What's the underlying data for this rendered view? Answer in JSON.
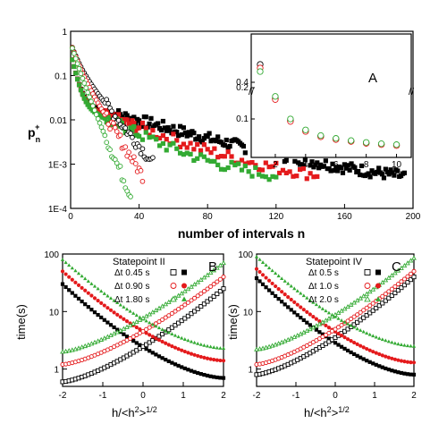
{
  "colors": {
    "black": "#000000",
    "red": "#e41a1c",
    "green": "#33aa33"
  },
  "chart_data": [
    {
      "id": "top",
      "type": "scatter",
      "xlabel": "number of intervals n",
      "ylabel_main": "p",
      "ylabel_sub": "n",
      "ylabel_sup": "+",
      "xlim": [
        0,
        200
      ],
      "ylim": [
        0.0001,
        1
      ],
      "yscale": "log",
      "xticks": [
        "0",
        "40",
        "80",
        "120",
        "160",
        "200"
      ],
      "yticks": [
        "1E-4",
        "1E-3",
        "0.01",
        "0.1",
        "1"
      ],
      "series": [
        {
          "color": "black",
          "marker": "square-filled",
          "decay_scale": 25,
          "tail_end": 195
        },
        {
          "color": "red",
          "marker": "square-filled",
          "decay_scale": 18,
          "tail_end": 145
        },
        {
          "color": "green",
          "marker": "square-filled",
          "decay_scale": 14,
          "tail_end": 120
        },
        {
          "color": "black",
          "marker": "circle-open",
          "decay_scale": 9,
          "tail_end": 48
        },
        {
          "color": "red",
          "marker": "circle-open",
          "decay_scale": 7,
          "tail_end": 42
        },
        {
          "color": "green",
          "marker": "circle-open",
          "decay_scale": 5,
          "tail_end": 35
        }
      ],
      "inset": {
        "label": "A",
        "xlim": [
          1,
          10.5
        ],
        "xticks": [
          "2",
          "4",
          "6",
          "8",
          "10"
        ],
        "yticks": [
          "0.1",
          "0.2",
          "0.4"
        ],
        "x": [
          1,
          2,
          3,
          4,
          5,
          6,
          7,
          8,
          9,
          10
        ],
        "series": [
          {
            "color": "black",
            "values": [
              0.45,
              0.165,
              0.095,
              0.062,
              0.045,
              0.036,
              0.029,
              0.023,
              0.019,
              0.016
            ]
          },
          {
            "color": "red",
            "values": [
              0.44,
              0.162,
              0.092,
              0.06,
              0.043,
              0.034,
              0.028,
              0.022,
              0.018,
              0.015
            ]
          },
          {
            "color": "green",
            "values": [
              0.43,
              0.172,
              0.1,
              0.065,
              0.047,
              0.038,
              0.031,
              0.025,
              0.021,
              0.018
            ]
          }
        ]
      }
    },
    {
      "id": "B",
      "type": "scatter",
      "label": "B",
      "title": "Statepoint II",
      "xlabel_main": "h/<h",
      "xlabel_sup1": "2",
      "xlabel_close": ">",
      "xlabel_sup2": "1/2",
      "ylabel": "time(s)",
      "xlim": [
        -2,
        2
      ],
      "ylim": [
        0.5,
        100
      ],
      "yscale": "log",
      "xticks": [
        "-2",
        "-1",
        "0",
        "1",
        "2"
      ],
      "yticks": [
        "1",
        "10",
        "100"
      ],
      "legend": [
        {
          "text": "Δt 0.45 s",
          "color": "black"
        },
        {
          "text": "Δt 0.90 s",
          "color": "red"
        },
        {
          "text": "Δt 1.80 s",
          "color": "green"
        }
      ],
      "series": [
        {
          "color": "black",
          "dir": "down",
          "end_values": [
            30,
            0.7
          ]
        },
        {
          "color": "black",
          "dir": "up",
          "end_values": [
            0.6,
            25
          ]
        },
        {
          "color": "red",
          "dir": "down",
          "end_values": [
            50,
            1.4
          ]
        },
        {
          "color": "red",
          "dir": "up",
          "end_values": [
            1.2,
            40
          ]
        },
        {
          "color": "green",
          "dir": "down",
          "end_values": [
            80,
            2.3
          ]
        },
        {
          "color": "green",
          "dir": "up",
          "end_values": [
            2,
            70
          ]
        }
      ]
    },
    {
      "id": "C",
      "type": "scatter",
      "label": "C",
      "title": "Statepoint IV",
      "xlabel_main": "h/<h",
      "xlabel_sup1": "2",
      "xlabel_close": ">",
      "xlabel_sup2": "1/2",
      "ylabel": "time(s)",
      "xlim": [
        -2,
        2
      ],
      "ylim": [
        0.5,
        100
      ],
      "yscale": "log",
      "xticks": [
        "-2",
        "-1",
        "0",
        "1",
        "2"
      ],
      "yticks": [
        "1",
        "10",
        "100"
      ],
      "legend": [
        {
          "text": "Δt 0.5 s",
          "color": "black"
        },
        {
          "text": "Δt 1.0 s",
          "color": "red"
        },
        {
          "text": "Δt 2.0 s",
          "color": "green"
        }
      ],
      "series": [
        {
          "color": "black",
          "dir": "down",
          "end_values": [
            38,
            0.8
          ]
        },
        {
          "color": "black",
          "dir": "up",
          "end_values": [
            0.8,
            40
          ]
        },
        {
          "color": "red",
          "dir": "down",
          "end_values": [
            55,
            1.3
          ]
        },
        {
          "color": "red",
          "dir": "up",
          "end_values": [
            1.2,
            50
          ]
        },
        {
          "color": "green",
          "dir": "down",
          "end_values": [
            90,
            2.5
          ]
        },
        {
          "color": "green",
          "dir": "up",
          "end_values": [
            2.2,
            85
          ]
        }
      ]
    }
  ]
}
